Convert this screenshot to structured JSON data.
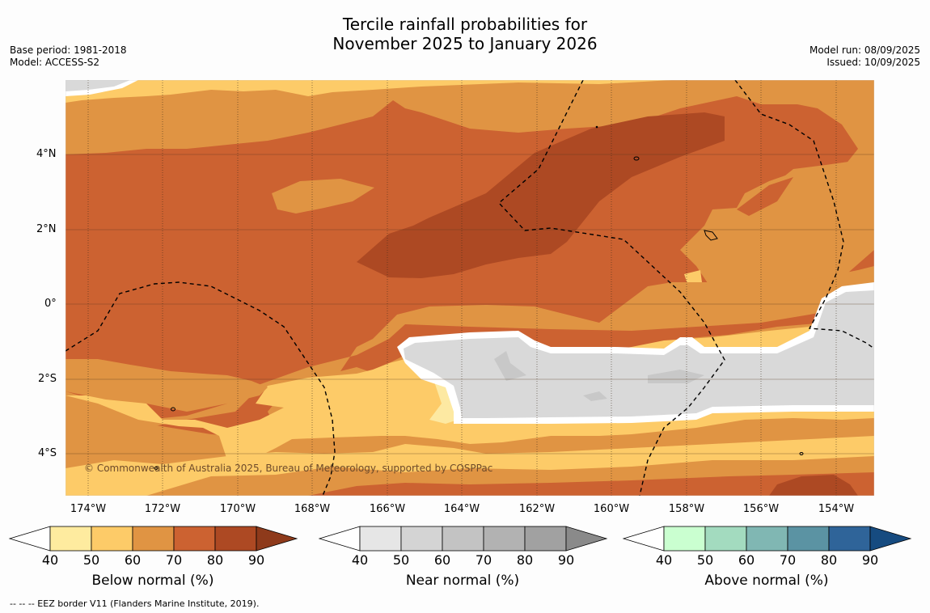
{
  "header": {
    "title_line1": "Tercile rainfall probabilities for",
    "title_line2": "November 2025 to January 2026",
    "base_period": "Base period: 1981-2018",
    "model": "Model: ACCESS-S2",
    "model_run": "Model run: 08/09/2025",
    "issued": "Issued: 10/09/2025"
  },
  "map": {
    "lat_labels": [
      "4°N",
      "2°N",
      "0°",
      "2°S",
      "4°S"
    ],
    "lon_labels": [
      "174°W",
      "172°W",
      "170°W",
      "168°W",
      "166°W",
      "164°W",
      "162°W",
      "160°W",
      "158°W",
      "156°W",
      "154°W"
    ],
    "copyright": "© Commonwealth of Australia 2025, Bureau of Meteorology, supported by COSPPac",
    "colors": {
      "below_50": "#fde9a2",
      "below_60": "#fdcb68",
      "below_70": "#e09443",
      "below_80": "#cc6231",
      "below_90": "#ad4923",
      "near_50": "#d9d9d9",
      "near_60": "#c8c8c8",
      "no_signal": "#ffffff"
    }
  },
  "colorbars": [
    {
      "title": "Below normal (%)",
      "ticks": [
        "40",
        "50",
        "60",
        "70",
        "80",
        "90"
      ],
      "colors": [
        "#ffffff",
        "#feeb9f",
        "#fdcb68",
        "#e09443",
        "#cc6231",
        "#ad4923",
        "#8e3a1b"
      ]
    },
    {
      "title": "Near normal (%)",
      "ticks": [
        "40",
        "50",
        "60",
        "70",
        "80",
        "90"
      ],
      "colors": [
        "#ffffff",
        "#e6e6e6",
        "#d4d4d4",
        "#c3c3c3",
        "#b2b2b2",
        "#a1a1a1",
        "#8a8a8a"
      ]
    },
    {
      "title": "Above normal (%)",
      "ticks": [
        "40",
        "50",
        "60",
        "70",
        "80",
        "90"
      ],
      "colors": [
        "#ffffff",
        "#caffd0",
        "#a3dbbf",
        "#80b7b3",
        "#5b93a3",
        "#2f6499",
        "#164b80"
      ]
    }
  ],
  "footnote": "-- -- -- EEZ border V11 (Flanders Marine Institute, 2019)."
}
